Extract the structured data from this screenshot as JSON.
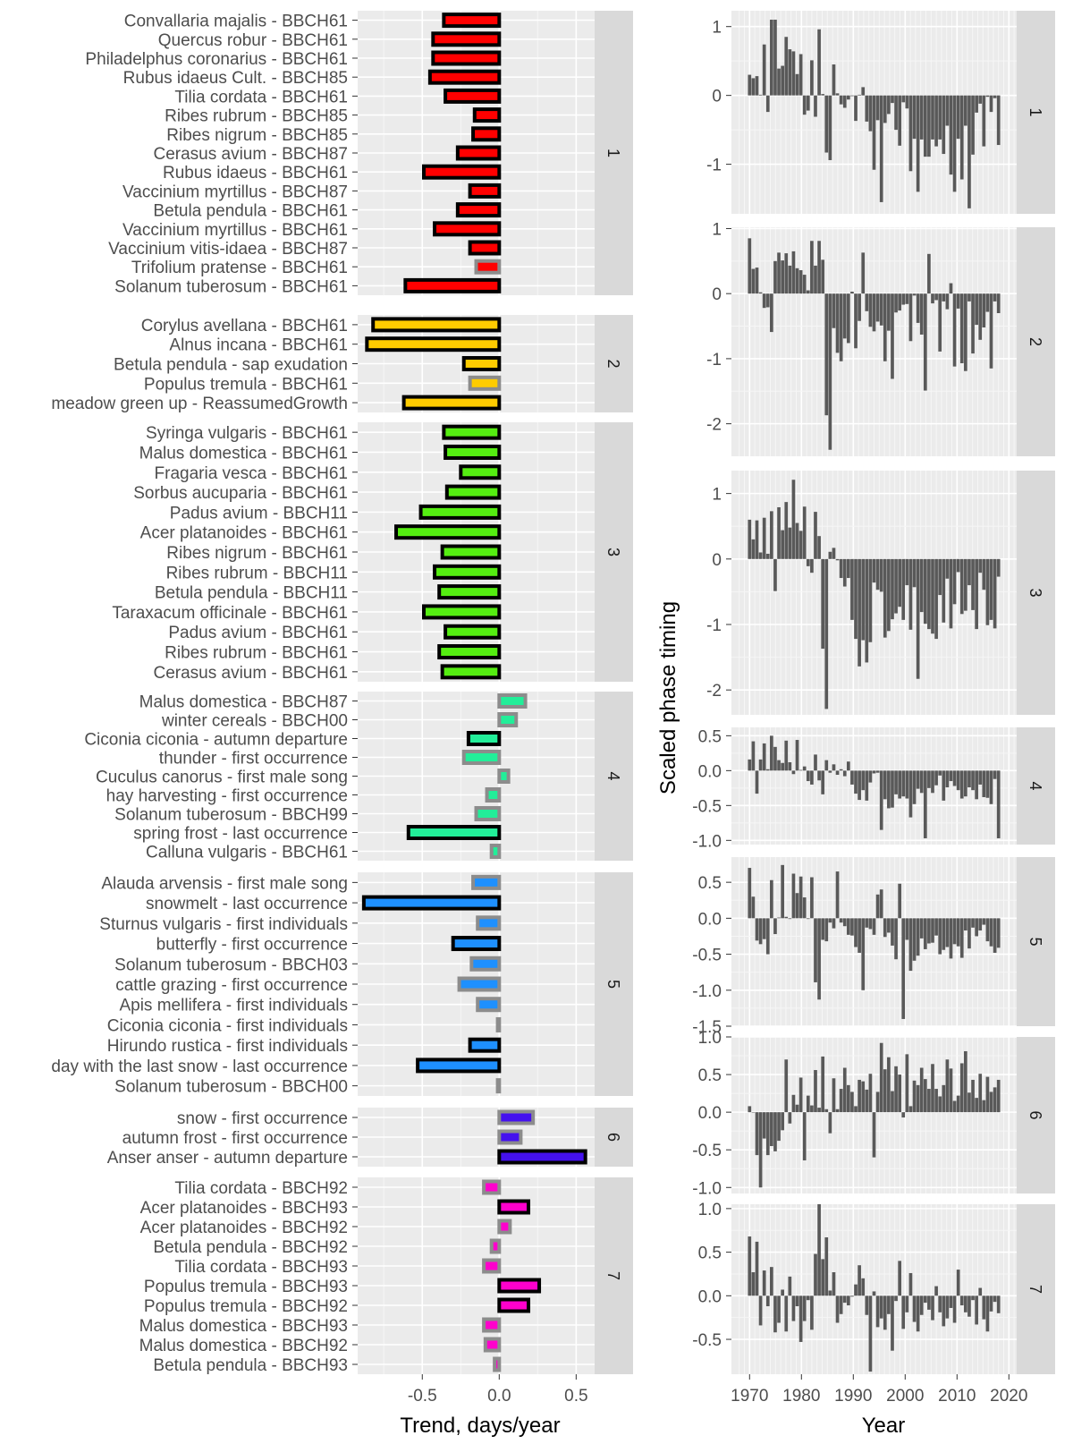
{
  "chart_data": [
    {
      "type": "bar",
      "orientation": "horizontal",
      "xlabel": "Trend, days/year",
      "xlim": [
        -0.92,
        0.62
      ],
      "xticks": [
        "-0.5",
        "0.0",
        "0.5"
      ],
      "xtick_values": [
        -0.5,
        0,
        0.5
      ],
      "grid": true,
      "legend": "none",
      "panels": [
        {
          "strip": "1",
          "color": "#ff0000",
          "categories": [
            "Convallaria majalis -  BBCH61",
            "Quercus robur -  BBCH61",
            "Philadelphus coronarius -  BBCH61",
            "Rubus idaeus Cult. -  BBCH85",
            "Tilia cordata -  BBCH61",
            "Ribes rubrum -  BBCH85",
            "Ribes nigrum -  BBCH85",
            "Cerasus avium -  BBCH87",
            "Rubus idaeus -  BBCH61",
            "Vaccinium myrtillus -  BBCH87",
            "Betula pendula -  BBCH61",
            "Vaccinium myrtillus -  BBCH61",
            "Vaccinium vitis-idaea  -  BBCH87",
            "Trifolium pratense -  BBCH61",
            "Solanum tuberosum -  BBCH61"
          ],
          "values": [
            -0.36,
            -0.43,
            -0.43,
            -0.45,
            -0.35,
            -0.16,
            -0.17,
            -0.27,
            -0.49,
            -0.19,
            -0.27,
            -0.42,
            -0.19,
            -0.15,
            -0.61
          ],
          "significant": [
            true,
            true,
            true,
            true,
            true,
            true,
            true,
            true,
            true,
            true,
            true,
            true,
            true,
            false,
            true
          ]
        },
        {
          "strip": "2",
          "color": "#ffcc00",
          "categories": [
            "Corylus avellana -  BBCH61",
            "Alnus incana -  BBCH61",
            "Betula pendula -  sap exudation",
            "Populus tremula -  BBCH61",
            "meadow green up -  ReassumedGrowth"
          ],
          "values": [
            -0.82,
            -0.86,
            -0.23,
            -0.19,
            -0.62
          ],
          "significant": [
            true,
            true,
            true,
            false,
            true
          ]
        },
        {
          "strip": "3",
          "color": "#55ee11",
          "categories": [
            "Syringa vulgaris -  BBCH61",
            "Malus domestica -  BBCH61",
            "Fragaria vesca -  BBCH61",
            "Sorbus aucuparia -  BBCH61",
            "Padus avium -  BBCH11",
            "Acer platanoides -  BBCH61",
            "Ribes nigrum -  BBCH61",
            "Ribes rubrum -  BBCH11",
            "Betula pendula -  BBCH11",
            "Taraxacum officinale -  BBCH61",
            "Padus avium -  BBCH61",
            "Ribes rubrum -  BBCH61",
            "Cerasus avium -  BBCH61"
          ],
          "values": [
            -0.36,
            -0.35,
            -0.25,
            -0.34,
            -0.51,
            -0.67,
            -0.37,
            -0.42,
            -0.39,
            -0.49,
            -0.35,
            -0.39,
            -0.37
          ],
          "significant": [
            true,
            true,
            true,
            true,
            true,
            true,
            true,
            true,
            true,
            true,
            true,
            true,
            true
          ]
        },
        {
          "strip": "4",
          "color": "#22ee99",
          "categories": [
            "Malus domestica -  BBCH87",
            "winter cereals -  BBCH00",
            "Ciconia ciconia -  autumn departure",
            "thunder -  first occurrence",
            "Cuculus canorus -  first male song",
            "hay harvesting -  first occurrence",
            "Solanum tuberosum -  BBCH99",
            "spring frost -  last occurrence",
            "Calluna vulgaris -  BBCH61"
          ],
          "values": [
            0.17,
            0.11,
            -0.2,
            -0.23,
            0.06,
            -0.08,
            -0.15,
            -0.59,
            -0.05
          ],
          "significant": [
            false,
            false,
            true,
            false,
            false,
            false,
            false,
            true,
            false
          ]
        },
        {
          "strip": "5",
          "color": "#1e90ff",
          "categories": [
            "Alauda arvensis -  first male song",
            "snowmelt -  last occurrence",
            "Sturnus vulgaris -  first individuals",
            "butterfly -  first occurrence",
            "Solanum tuberosum -  BBCH03",
            "cattle grazing -  first occurrence",
            "Apis mellifera -  first individuals",
            "Ciconia ciconia -  first individuals",
            "Hirundo rustica -  first individuals",
            "day with the last snow -  last occurrence",
            "Solanum tuberosum -  BBCH00"
          ],
          "values": [
            -0.17,
            -0.88,
            -0.14,
            -0.3,
            -0.18,
            -0.26,
            -0.14,
            -0.01,
            -0.19,
            -0.53,
            -0.01
          ],
          "significant": [
            false,
            true,
            false,
            true,
            false,
            false,
            false,
            false,
            true,
            true,
            false
          ]
        },
        {
          "strip": "6",
          "color": "#4411ee",
          "categories": [
            "snow -  first occurrence",
            "autumn frost -  first occurrence",
            "Anser anser -  autumn departure"
          ],
          "values": [
            0.22,
            0.14,
            0.56
          ],
          "significant": [
            false,
            false,
            true
          ]
        },
        {
          "strip": "7",
          "color": "#ff00cc",
          "categories": [
            "Tilia cordata -  BBCH92",
            "Acer platanoides -  BBCH93",
            "Acer platanoides -  BBCH92",
            "Betula pendula -  BBCH92",
            "Tilia cordata -  BBCH93",
            "Populus tremula -  BBCH93",
            "Populus tremula -  BBCH92",
            "Malus domestica -  BBCH93",
            "Malus domestica -  BBCH92",
            "Betula pendula -  BBCH93"
          ],
          "values": [
            -0.1,
            0.19,
            0.07,
            -0.05,
            -0.1,
            0.26,
            0.19,
            -0.1,
            -0.09,
            -0.03
          ],
          "significant": [
            false,
            true,
            false,
            false,
            false,
            true,
            true,
            false,
            false,
            false
          ]
        }
      ]
    },
    {
      "type": "bar",
      "xlabel": "Year",
      "ylabel": "Scaled phase timing",
      "xlim": [
        1966.5,
        2021.5
      ],
      "xticks": [
        "1970",
        "1980",
        "1990",
        "2000",
        "2010",
        "2020"
      ],
      "xtick_values": [
        1970,
        1980,
        1990,
        2000,
        2010,
        2020
      ],
      "bar_color": "#595959",
      "grid": true,
      "years_start": 1970,
      "panels": [
        {
          "strip": "1",
          "ylim": [
            -1.72,
            1.23
          ],
          "yticks": [
            "1",
            "0",
            "-1"
          ],
          "ytick_values": [
            1,
            0,
            -1
          ],
          "values": [
            0.3,
            0.25,
            0.28,
            0.01,
            0.74,
            -0.24,
            1.1,
            1.1,
            0.39,
            0.43,
            0.85,
            0.67,
            0.64,
            0.31,
            0.6,
            -0.28,
            -0.22,
            0.51,
            -0.31,
            0.96,
            0.02,
            -0.83,
            -0.94,
            0.45,
            0.03,
            -0.13,
            -0.18,
            -0.06,
            -0.01,
            -0.37,
            0.01,
            0.12,
            -0.38,
            -0.52,
            -1.08,
            -0.36,
            -1.55,
            -0.4,
            -0.27,
            -0.11,
            -0.5,
            -0.73,
            -0.1,
            -0.19,
            -1.1,
            -0.63,
            -1.4,
            -0.64,
            -0.89,
            -0.89,
            -0.64,
            -0.74,
            -0.64,
            -0.85,
            -0.44,
            -1.15,
            -1.4,
            -0.63,
            -1.22,
            -0.44,
            -1.64,
            -0.86,
            -0.25,
            -0.12,
            -0.74,
            -0.02,
            -0.24,
            -0.04,
            -0.72
          ]
        },
        {
          "strip": "2",
          "ylim": [
            -2.5,
            1.02
          ],
          "yticks": [
            "1",
            "0",
            "-1",
            "-2"
          ],
          "ytick_values": [
            1,
            0,
            -1,
            -2
          ],
          "values": [
            0.85,
            0.38,
            0.4,
            0.02,
            -0.22,
            -0.21,
            -0.59,
            0.5,
            0.63,
            0.51,
            0.62,
            0.43,
            0.65,
            0.39,
            0.36,
            0.29,
            0.05,
            0.81,
            0.43,
            0.81,
            0.52,
            -1.87,
            -2.4,
            -0.53,
            -0.91,
            -1.04,
            -0.69,
            -0.76,
            0.03,
            -0.84,
            -0.42,
            0.63,
            -0.27,
            -0.51,
            -0.58,
            -0.43,
            -0.49,
            -1.04,
            -0.57,
            -1.31,
            -0.29,
            -0.26,
            -0.17,
            -0.16,
            -0.73,
            -0.03,
            -0.45,
            -0.63,
            -1.49,
            0.61,
            -0.15,
            -0.1,
            -0.89,
            -0.12,
            -0.24,
            0.16,
            -1.12,
            -0.23,
            -1.07,
            -1.19,
            -0.12,
            -0.92,
            -0.48,
            -0.71,
            -0.52,
            -0.28,
            -1.15,
            -0.12,
            -0.3
          ]
        },
        {
          "strip": "3",
          "ylim": [
            -2.38,
            1.35
          ],
          "yticks": [
            "1",
            "0",
            "-1",
            "-2"
          ],
          "ytick_values": [
            1,
            0,
            -1,
            -2
          ],
          "values": [
            0.6,
            0.3,
            0.59,
            0.1,
            0.63,
            0.08,
            0.73,
            -0.49,
            0.79,
            0.44,
            0.87,
            0.48,
            1.21,
            0.55,
            0.43,
            0.8,
            -0.11,
            -0.21,
            0.72,
            0.35,
            -1.37,
            -2.29,
            0.11,
            0.17,
            -0.02,
            -0.29,
            -0.42,
            -0.29,
            -0.93,
            -1.22,
            -1.64,
            -1.24,
            -1.58,
            -1.27,
            -0.36,
            -0.47,
            -0.5,
            -1.2,
            -1.1,
            -0.92,
            -0.83,
            -0.73,
            -0.93,
            -0.4,
            -1.08,
            -0.43,
            -1.83,
            -0.81,
            -0.99,
            -1.07,
            -1.14,
            -1.22,
            -0.55,
            -0.97,
            -0.3,
            -1.06,
            -0.69,
            -0.2,
            -0.84,
            -0.79,
            -0.4,
            -0.78,
            -1.07,
            -0.21,
            -0.47,
            -1.01,
            -0.93,
            -1.06,
            -0.27
          ]
        },
        {
          "strip": "4",
          "ylim": [
            -1.06,
            0.62
          ],
          "yticks": [
            "0.5",
            "0.0",
            "-0.5",
            "-1.0"
          ],
          "ytick_values": [
            0.5,
            0,
            -0.5,
            -1
          ],
          "values": [
            0.16,
            0.42,
            -0.33,
            0.16,
            0.39,
            0.02,
            0.5,
            0.34,
            0.15,
            0.11,
            0.43,
            0.12,
            -0.05,
            0.44,
            0.01,
            0.06,
            -0.15,
            -0.2,
            0.23,
            -0.14,
            -0.34,
            0.15,
            -0.03,
            0.09,
            -0.06,
            0.02,
            -0.08,
            0.13,
            -0.2,
            -0.33,
            -0.42,
            -0.28,
            -0.43,
            -0.17,
            -0.04,
            -0.03,
            -0.85,
            -0.41,
            -0.54,
            -0.53,
            -0.34,
            -0.4,
            -0.37,
            -0.4,
            -0.67,
            -0.48,
            -0.26,
            -0.32,
            -0.97,
            -0.25,
            -0.32,
            -0.21,
            -0.07,
            -0.43,
            -0.24,
            -0.15,
            -0.22,
            -0.28,
            -0.4,
            -0.37,
            -0.24,
            -0.28,
            -0.41,
            -0.2,
            -0.38,
            -0.39,
            -0.48,
            -0.12,
            -0.97
          ]
        },
        {
          "strip": "5",
          "ylim": [
            -1.5,
            0.85
          ],
          "yticks": [
            "0.5",
            "0.0",
            "-0.5",
            "-1.0",
            "-1.5"
          ],
          "ytick_values": [
            0.5,
            0,
            -0.5,
            -1,
            -1.5
          ],
          "values": [
            0.7,
            0.3,
            -0.31,
            -0.36,
            -0.29,
            -0.5,
            0.53,
            -0.22,
            0.01,
            0.74,
            0.02,
            -0.01,
            0.62,
            0.35,
            0.58,
            0.29,
            -0.01,
            0.57,
            -0.89,
            -1.13,
            -0.3,
            -0.32,
            -0.06,
            -0.14,
            0.65,
            -0.06,
            -0.11,
            -0.23,
            -0.24,
            -0.4,
            -0.48,
            -1.0,
            -0.13,
            -0.15,
            -0.23,
            0.33,
            0.4,
            -0.26,
            -0.2,
            -0.38,
            -0.57,
            0.48,
            -1.4,
            -0.3,
            -0.73,
            -0.59,
            -0.52,
            -0.28,
            -0.43,
            -0.35,
            -0.34,
            -0.24,
            -0.5,
            -0.44,
            -0.4,
            -0.56,
            -0.36,
            -0.39,
            -0.55,
            -0.17,
            -0.42,
            -0.13,
            -0.25,
            -0.17,
            -0.09,
            -0.32,
            -0.39,
            -0.48,
            -0.41
          ]
        },
        {
          "strip": "6",
          "ylim": [
            -1.08,
            1.0
          ],
          "yticks": [
            "1.0",
            "0.5",
            "0.0",
            "-0.5",
            "-1.0"
          ],
          "ytick_values": [
            1,
            0.5,
            0,
            -0.5,
            -1
          ],
          "values": [
            0.08,
            0.0,
            -0.57,
            -1.0,
            -0.35,
            -0.57,
            -0.45,
            -0.52,
            -0.38,
            -0.24,
            0.7,
            -0.15,
            0.23,
            0.1,
            0.46,
            -0.64,
            0.22,
            0.09,
            0.56,
            0.06,
            0.74,
            0.04,
            -0.28,
            0.45,
            0.04,
            0.31,
            0.59,
            0.36,
            0.27,
            0.08,
            0.43,
            0.41,
            0.3,
            0.51,
            -0.6,
            0.27,
            0.92,
            0.57,
            0.73,
            0.28,
            0.61,
            0.5,
            -0.07,
            0.77,
            0.08,
            0.42,
            0.36,
            0.59,
            0.44,
            0.31,
            0.64,
            0.31,
            0.21,
            0.36,
            0.7,
            0.58,
            0.15,
            0.22,
            0.65,
            0.81,
            0.26,
            0.43,
            0.19,
            0.51,
            0.16,
            0.47,
            0.27,
            0.33,
            0.43
          ]
        },
        {
          "strip": "7",
          "ylim": [
            -0.9,
            1.05
          ],
          "yticks": [
            "1.0",
            "0.5",
            "0.0",
            "-0.5"
          ],
          "ytick_values": [
            1,
            0.5,
            0,
            -0.5
          ],
          "values": [
            0.68,
            0.27,
            0.62,
            -0.34,
            0.29,
            -0.12,
            0.33,
            -0.42,
            -0.31,
            0.07,
            -0.41,
            0.22,
            -0.29,
            -0.12,
            -0.53,
            -0.29,
            -0.05,
            -0.39,
            0.48,
            1.05,
            0.42,
            0.67,
            0.06,
            0.27,
            -0.31,
            -0.21,
            -0.08,
            -0.11,
            -0.01,
            0.13,
            0.35,
            0.2,
            -0.22,
            -0.87,
            0.05,
            -0.36,
            -0.26,
            -0.39,
            -0.21,
            -0.63,
            -0.06,
            0.4,
            -0.38,
            -0.19,
            0.26,
            -0.3,
            -0.41,
            -0.22,
            -0.08,
            -0.16,
            -0.28,
            0.11,
            -0.19,
            -0.35,
            -0.26,
            -0.14,
            -0.31,
            0.3,
            -0.11,
            -0.19,
            -0.24,
            -0.05,
            -0.33,
            0.09,
            -0.27,
            -0.41,
            -0.18,
            -0.07,
            -0.2
          ]
        }
      ]
    }
  ]
}
